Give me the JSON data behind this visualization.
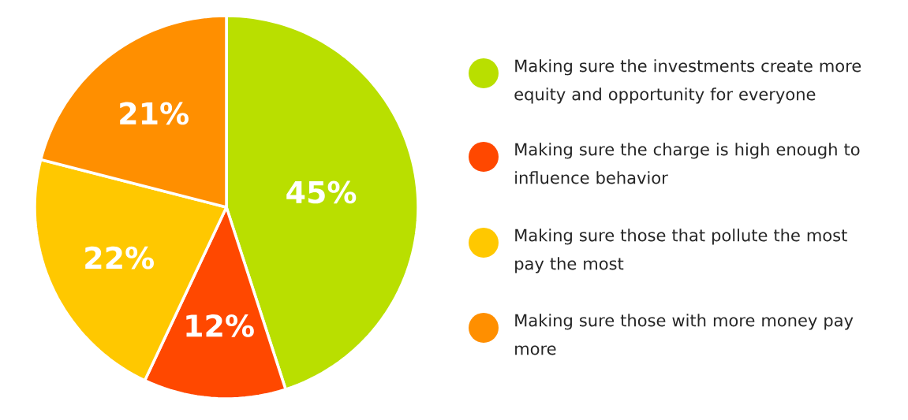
{
  "chart_data": {
    "type": "pie",
    "categories": [
      "Making sure the investments create more equity and opportunity for everyone",
      "Making sure the charge is high enough to influence behavior",
      "Making sure those that pollute the most pay the most",
      "Making sure those with more money pay more"
    ],
    "values": [
      45,
      12,
      22,
      21
    ],
    "colors": [
      "#b9df00",
      "#ff4800",
      "#ffc800",
      "#ff8f00"
    ],
    "value_labels": [
      "45%",
      "12%",
      "22%",
      "21%"
    ],
    "legend": "right"
  }
}
